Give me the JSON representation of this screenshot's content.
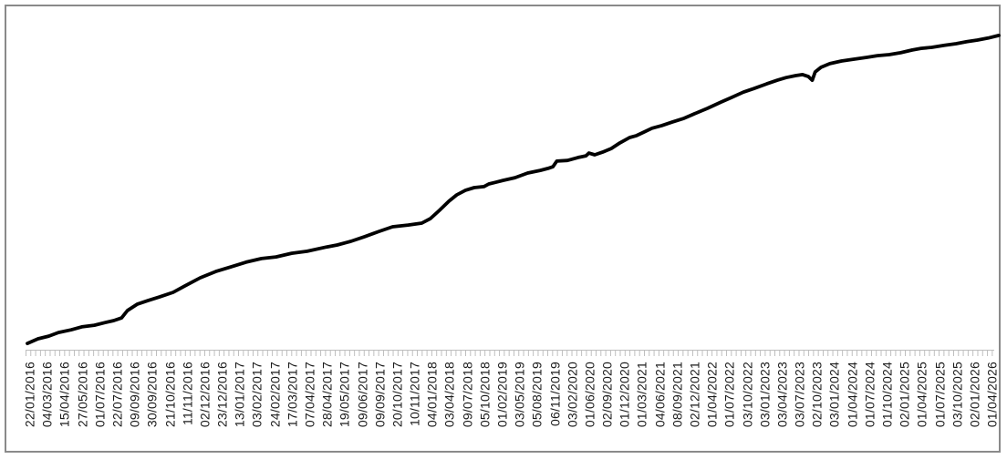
{
  "colors": {
    "frame_border": "#8a8a8a",
    "axis": "#bdbdbd",
    "label": "#1a1a1a",
    "series_line": "#000000",
    "background": "#ffffff"
  },
  "chart_data": {
    "type": "line",
    "title": "",
    "xlabel": "",
    "ylabel": "",
    "legend": "none",
    "gridlines": false,
    "y_axis_visible": false,
    "x_tick_label_rotation_deg": 90,
    "x_tick_labels": [
      "22/01/2016",
      "04/03/2016",
      "15/04/2016",
      "27/05/2016",
      "01/07/2016",
      "22/07/2016",
      "09/09/2016",
      "30/09/2016",
      "21/10/2016",
      "11/11/2016",
      "02/12/2016",
      "23/12/2016",
      "13/01/2017",
      "03/02/2017",
      "24/02/2017",
      "17/03/2017",
      "07/04/2017",
      "28/04/2017",
      "19/05/2017",
      "09/06/2017",
      "09/09/2017",
      "20/10/2017",
      "10/11/2017",
      "04/01/2018",
      "03/04/2018",
      "09/07/2018",
      "05/10/2018",
      "01/02/2019",
      "03/05/2019",
      "05/08/2019",
      "06/11/2019",
      "03/02/2020",
      "01/06/2020",
      "02/09/2020",
      "01/12/2020",
      "01/03/2021",
      "04/06/2021",
      "08/09/2021",
      "02/12/2021",
      "01/04/2022",
      "01/07/2022",
      "03/10/2022",
      "03/01/2023",
      "03/04/2023",
      "03/07/2023",
      "02/10/2023",
      "03/01/2024",
      "01/04/2024",
      "01/07/2024",
      "01/10/2024",
      "02/01/2025",
      "01/04/2025",
      "01/07/2025",
      "03/10/2025",
      "02/01/2026",
      "01/04/2026"
    ],
    "series": [
      {
        "name": "",
        "color": "#000000",
        "stroke_width_px": 3.8,
        "values_scale": "relative level 0-100 of plot height (no y-axis shown in chart)",
        "values_at_ticks_pct": [
          2.2,
          4.1,
          5.5,
          6.6,
          8.0,
          9.3,
          13.5,
          15.4,
          17.0,
          19.8,
          22.3,
          24.5,
          25.8,
          27.2,
          28.0,
          29.1,
          29.9,
          31.0,
          32.1,
          33.8,
          36.0,
          37.4,
          37.6,
          40.1,
          45.1,
          48.6,
          49.5,
          51.1,
          52.5,
          54.1,
          56.0,
          57.4,
          59.1,
          60.2,
          63.2,
          65.9,
          67.3,
          69.2,
          71.2,
          73.6,
          75.8,
          78.0,
          80.0,
          81.9,
          83.0,
          84.6,
          86.5,
          87.6,
          88.2,
          89.0,
          89.8,
          90.9,
          91.5,
          92.3,
          93.1,
          94.2
        ],
        "path": [
          [
            0.0,
            1.9
          ],
          [
            0.011,
            3.3
          ],
          [
            0.022,
            4.1
          ],
          [
            0.032,
            5.2
          ],
          [
            0.045,
            6.0
          ],
          [
            0.056,
            6.9
          ],
          [
            0.069,
            7.4
          ],
          [
            0.08,
            8.2
          ],
          [
            0.089,
            8.8
          ],
          [
            0.097,
            9.6
          ],
          [
            0.103,
            11.8
          ],
          [
            0.113,
            13.7
          ],
          [
            0.124,
            14.8
          ],
          [
            0.136,
            15.9
          ],
          [
            0.15,
            17.3
          ],
          [
            0.162,
            19.2
          ],
          [
            0.178,
            21.7
          ],
          [
            0.194,
            23.6
          ],
          [
            0.213,
            25.3
          ],
          [
            0.225,
            26.4
          ],
          [
            0.241,
            27.5
          ],
          [
            0.256,
            28.0
          ],
          [
            0.272,
            29.1
          ],
          [
            0.288,
            29.7
          ],
          [
            0.308,
            31.0
          ],
          [
            0.319,
            31.6
          ],
          [
            0.333,
            32.7
          ],
          [
            0.347,
            34.1
          ],
          [
            0.362,
            35.7
          ],
          [
            0.376,
            37.1
          ],
          [
            0.392,
            37.6
          ],
          [
            0.406,
            38.2
          ],
          [
            0.415,
            39.6
          ],
          [
            0.424,
            42.0
          ],
          [
            0.434,
            44.8
          ],
          [
            0.442,
            46.7
          ],
          [
            0.451,
            48.1
          ],
          [
            0.46,
            48.9
          ],
          [
            0.47,
            49.2
          ],
          [
            0.475,
            50.0
          ],
          [
            0.482,
            50.5
          ],
          [
            0.49,
            51.1
          ],
          [
            0.502,
            51.9
          ],
          [
            0.515,
            53.3
          ],
          [
            0.528,
            54.1
          ],
          [
            0.536,
            54.7
          ],
          [
            0.541,
            55.2
          ],
          [
            0.545,
            56.9
          ],
          [
            0.556,
            57.1
          ],
          [
            0.567,
            58.0
          ],
          [
            0.575,
            58.5
          ],
          [
            0.578,
            59.3
          ],
          [
            0.584,
            58.8
          ],
          [
            0.592,
            59.6
          ],
          [
            0.601,
            60.7
          ],
          [
            0.61,
            62.4
          ],
          [
            0.62,
            64.0
          ],
          [
            0.627,
            64.6
          ],
          [
            0.635,
            65.7
          ],
          [
            0.643,
            66.8
          ],
          [
            0.653,
            67.6
          ],
          [
            0.664,
            68.7
          ],
          [
            0.676,
            69.8
          ],
          [
            0.687,
            71.2
          ],
          [
            0.7,
            72.8
          ],
          [
            0.714,
            74.7
          ],
          [
            0.725,
            76.1
          ],
          [
            0.737,
            77.7
          ],
          [
            0.748,
            78.8
          ],
          [
            0.761,
            80.2
          ],
          [
            0.772,
            81.3
          ],
          [
            0.781,
            82.1
          ],
          [
            0.791,
            82.7
          ],
          [
            0.798,
            83.0
          ],
          [
            0.804,
            82.4
          ],
          [
            0.808,
            81.3
          ],
          [
            0.811,
            83.8
          ],
          [
            0.817,
            85.2
          ],
          [
            0.826,
            86.3
          ],
          [
            0.838,
            87.1
          ],
          [
            0.85,
            87.6
          ],
          [
            0.864,
            88.2
          ],
          [
            0.875,
            88.7
          ],
          [
            0.887,
            89.0
          ],
          [
            0.899,
            89.6
          ],
          [
            0.911,
            90.4
          ],
          [
            0.92,
            90.9
          ],
          [
            0.931,
            91.2
          ],
          [
            0.944,
            91.8
          ],
          [
            0.956,
            92.3
          ],
          [
            0.967,
            92.9
          ],
          [
            0.978,
            93.4
          ],
          [
            0.989,
            94.0
          ],
          [
            1.0,
            94.8
          ]
        ]
      }
    ]
  }
}
